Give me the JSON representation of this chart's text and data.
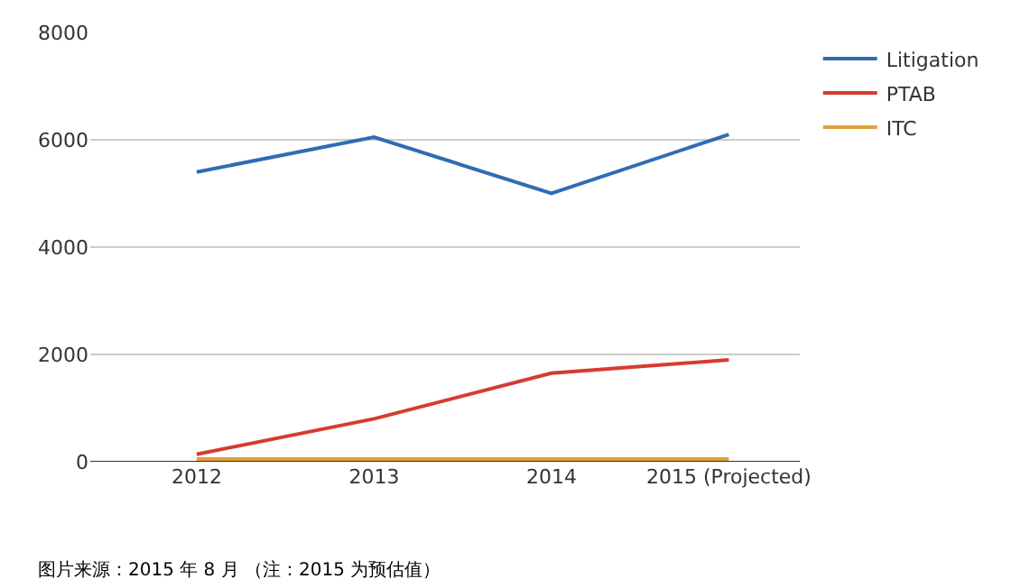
{
  "chart_data": {
    "type": "line",
    "categories": [
      "2012",
      "2013",
      "2014",
      "2015 (Projected)"
    ],
    "series": [
      {
        "name": "Litigation",
        "color": "#2e6db4",
        "values": [
          5400,
          6050,
          5000,
          6100
        ]
      },
      {
        "name": "PTAB",
        "color": "#d63b32",
        "values": [
          140,
          800,
          1650,
          1900
        ]
      },
      {
        "name": "ITC",
        "color": "#e0a13a",
        "values": [
          50,
          50,
          50,
          50
        ]
      }
    ],
    "ylim": [
      0,
      8000
    ],
    "yticks": [
      0,
      2000,
      4000,
      6000,
      8000
    ],
    "grid": "y",
    "legend": "top right",
    "marker": "none",
    "annotations": [
      "图片来源：2015 年 8 月 （注：2015 为预估值）"
    ]
  }
}
